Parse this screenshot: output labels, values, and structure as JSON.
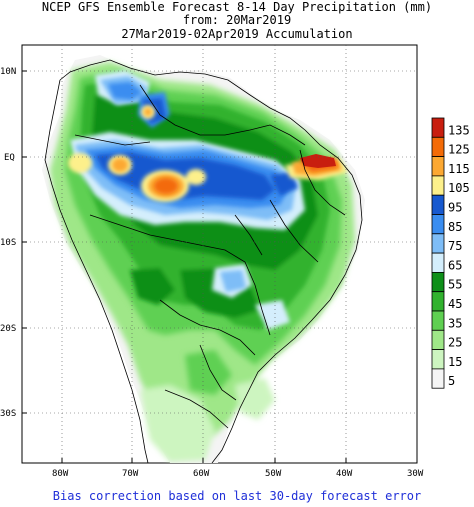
{
  "header": {
    "line1": "NCEP GFS Ensemble Forecast 8-14 Day Precipitation (mm)",
    "line2": "from: 20Mar2019",
    "line3": "27Mar2019-02Apr2019 Accumulation"
  },
  "axes": {
    "lat_labels": [
      "10N",
      "EQ",
      "10S",
      "20S",
      "30S"
    ],
    "lon_labels": [
      "80W",
      "70W",
      "60W",
      "50W",
      "40W",
      "30W"
    ]
  },
  "legend": {
    "values": [
      "135",
      "125",
      "115",
      "105",
      "95",
      "85",
      "75",
      "65",
      "55",
      "45",
      "35",
      "25",
      "15",
      "5"
    ],
    "colors": [
      "#c81e0f",
      "#f36b08",
      "#fca832",
      "#fdf08b",
      "#1759cf",
      "#3a8df0",
      "#7ebdf7",
      "#d4eefc",
      "#0e8f19",
      "#31b22e",
      "#5fd052",
      "#9fe788",
      "#cdf5c0",
      "#f5f5f5"
    ]
  },
  "footer": {
    "note": "Bias correction based on last 30-day forecast error"
  }
}
